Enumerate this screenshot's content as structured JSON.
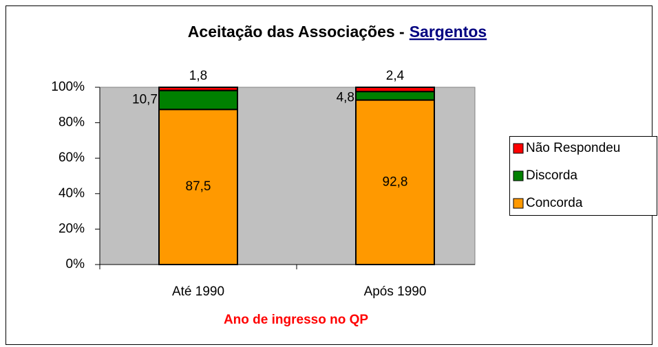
{
  "chart_data": {
    "type": "stacked_bar",
    "title": "Aceitação das Associações -",
    "title_link": "Sargentos",
    "x_label": "Ano de ingresso no QP",
    "categories": [
      "Até 1990",
      "Após 1990"
    ],
    "series": [
      {
        "name": "Concorda",
        "color": "#ff9900",
        "values": [
          87.5,
          92.8
        ],
        "value_labels": [
          "87,5",
          "92,8"
        ]
      },
      {
        "name": "Discorda",
        "color": "#008000",
        "values": [
          10.7,
          4.8
        ],
        "value_labels": [
          "10,7",
          "4,8"
        ]
      },
      {
        "name": "Não Respondeu",
        "color": "#ff0000",
        "values": [
          1.8,
          2.4
        ],
        "value_labels": [
          "1,8",
          "2,4"
        ]
      }
    ],
    "ylim": [
      0,
      100
    ],
    "yticks": [
      {
        "value": 0,
        "label": "0%"
      },
      {
        "value": 20,
        "label": "20%"
      },
      {
        "value": 40,
        "label": "40%"
      },
      {
        "value": 60,
        "label": "60%"
      },
      {
        "value": 80,
        "label": "80%"
      },
      {
        "value": 100,
        "label": "100%"
      }
    ],
    "legend": "right"
  }
}
